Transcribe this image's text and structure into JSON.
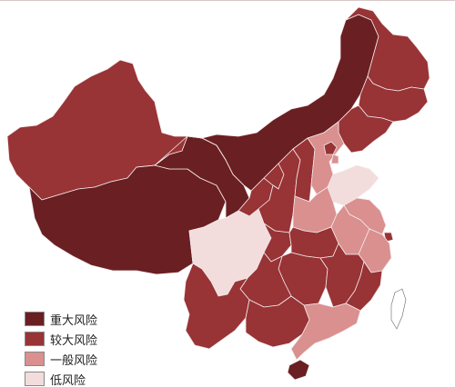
{
  "map": {
    "subject": "China provinces risk level map",
    "colors": {
      "major": "#6a1f22",
      "high": "#983336",
      "general": "#d9908f",
      "low": "#f2dcdc",
      "border": "#f4eaea"
    },
    "regions": [
      {
        "name": "Xinjiang",
        "level": "high"
      },
      {
        "name": "Tibet",
        "level": "major"
      },
      {
        "name": "Qinghai",
        "level": "major"
      },
      {
        "name": "Inner Mongolia",
        "level": "major"
      },
      {
        "name": "Heilongjiang",
        "level": "high"
      },
      {
        "name": "Jilin",
        "level": "high"
      },
      {
        "name": "Liaoning",
        "level": "high"
      },
      {
        "name": "Gansu",
        "level": "high"
      },
      {
        "name": "Ningxia",
        "level": "high"
      },
      {
        "name": "Shaanxi",
        "level": "high"
      },
      {
        "name": "Shanxi",
        "level": "high"
      },
      {
        "name": "Hebei",
        "level": "general"
      },
      {
        "name": "Beijing",
        "level": "high"
      },
      {
        "name": "Tianjin",
        "level": "general"
      },
      {
        "name": "Shandong",
        "level": "low"
      },
      {
        "name": "Henan",
        "level": "general"
      },
      {
        "name": "Jiangsu",
        "level": "general"
      },
      {
        "name": "Anhui",
        "level": "general"
      },
      {
        "name": "Shanghai",
        "level": "high"
      },
      {
        "name": "Zhejiang",
        "level": "general"
      },
      {
        "name": "Sichuan",
        "level": "low"
      },
      {
        "name": "Chongqing",
        "level": "high"
      },
      {
        "name": "Hubei",
        "level": "high"
      },
      {
        "name": "Hunan",
        "level": "high"
      },
      {
        "name": "Jiangxi",
        "level": "high"
      },
      {
        "name": "Fujian",
        "level": "high"
      },
      {
        "name": "Guizhou",
        "level": "high"
      },
      {
        "name": "Yunnan",
        "level": "high"
      },
      {
        "name": "Guangxi",
        "level": "high"
      },
      {
        "name": "Guangdong",
        "level": "general"
      },
      {
        "name": "Hainan",
        "level": "major"
      },
      {
        "name": "Taiwan",
        "level": "unshaded"
      }
    ]
  },
  "legend": {
    "items": [
      {
        "label": "重大风险",
        "level": "major",
        "color": "#6a1f22"
      },
      {
        "label": "较大风险",
        "level": "high",
        "color": "#983336"
      },
      {
        "label": "一般风险",
        "level": "general",
        "color": "#d9908f"
      },
      {
        "label": "低风险",
        "level": "low",
        "color": "#f2dcdc"
      }
    ]
  }
}
